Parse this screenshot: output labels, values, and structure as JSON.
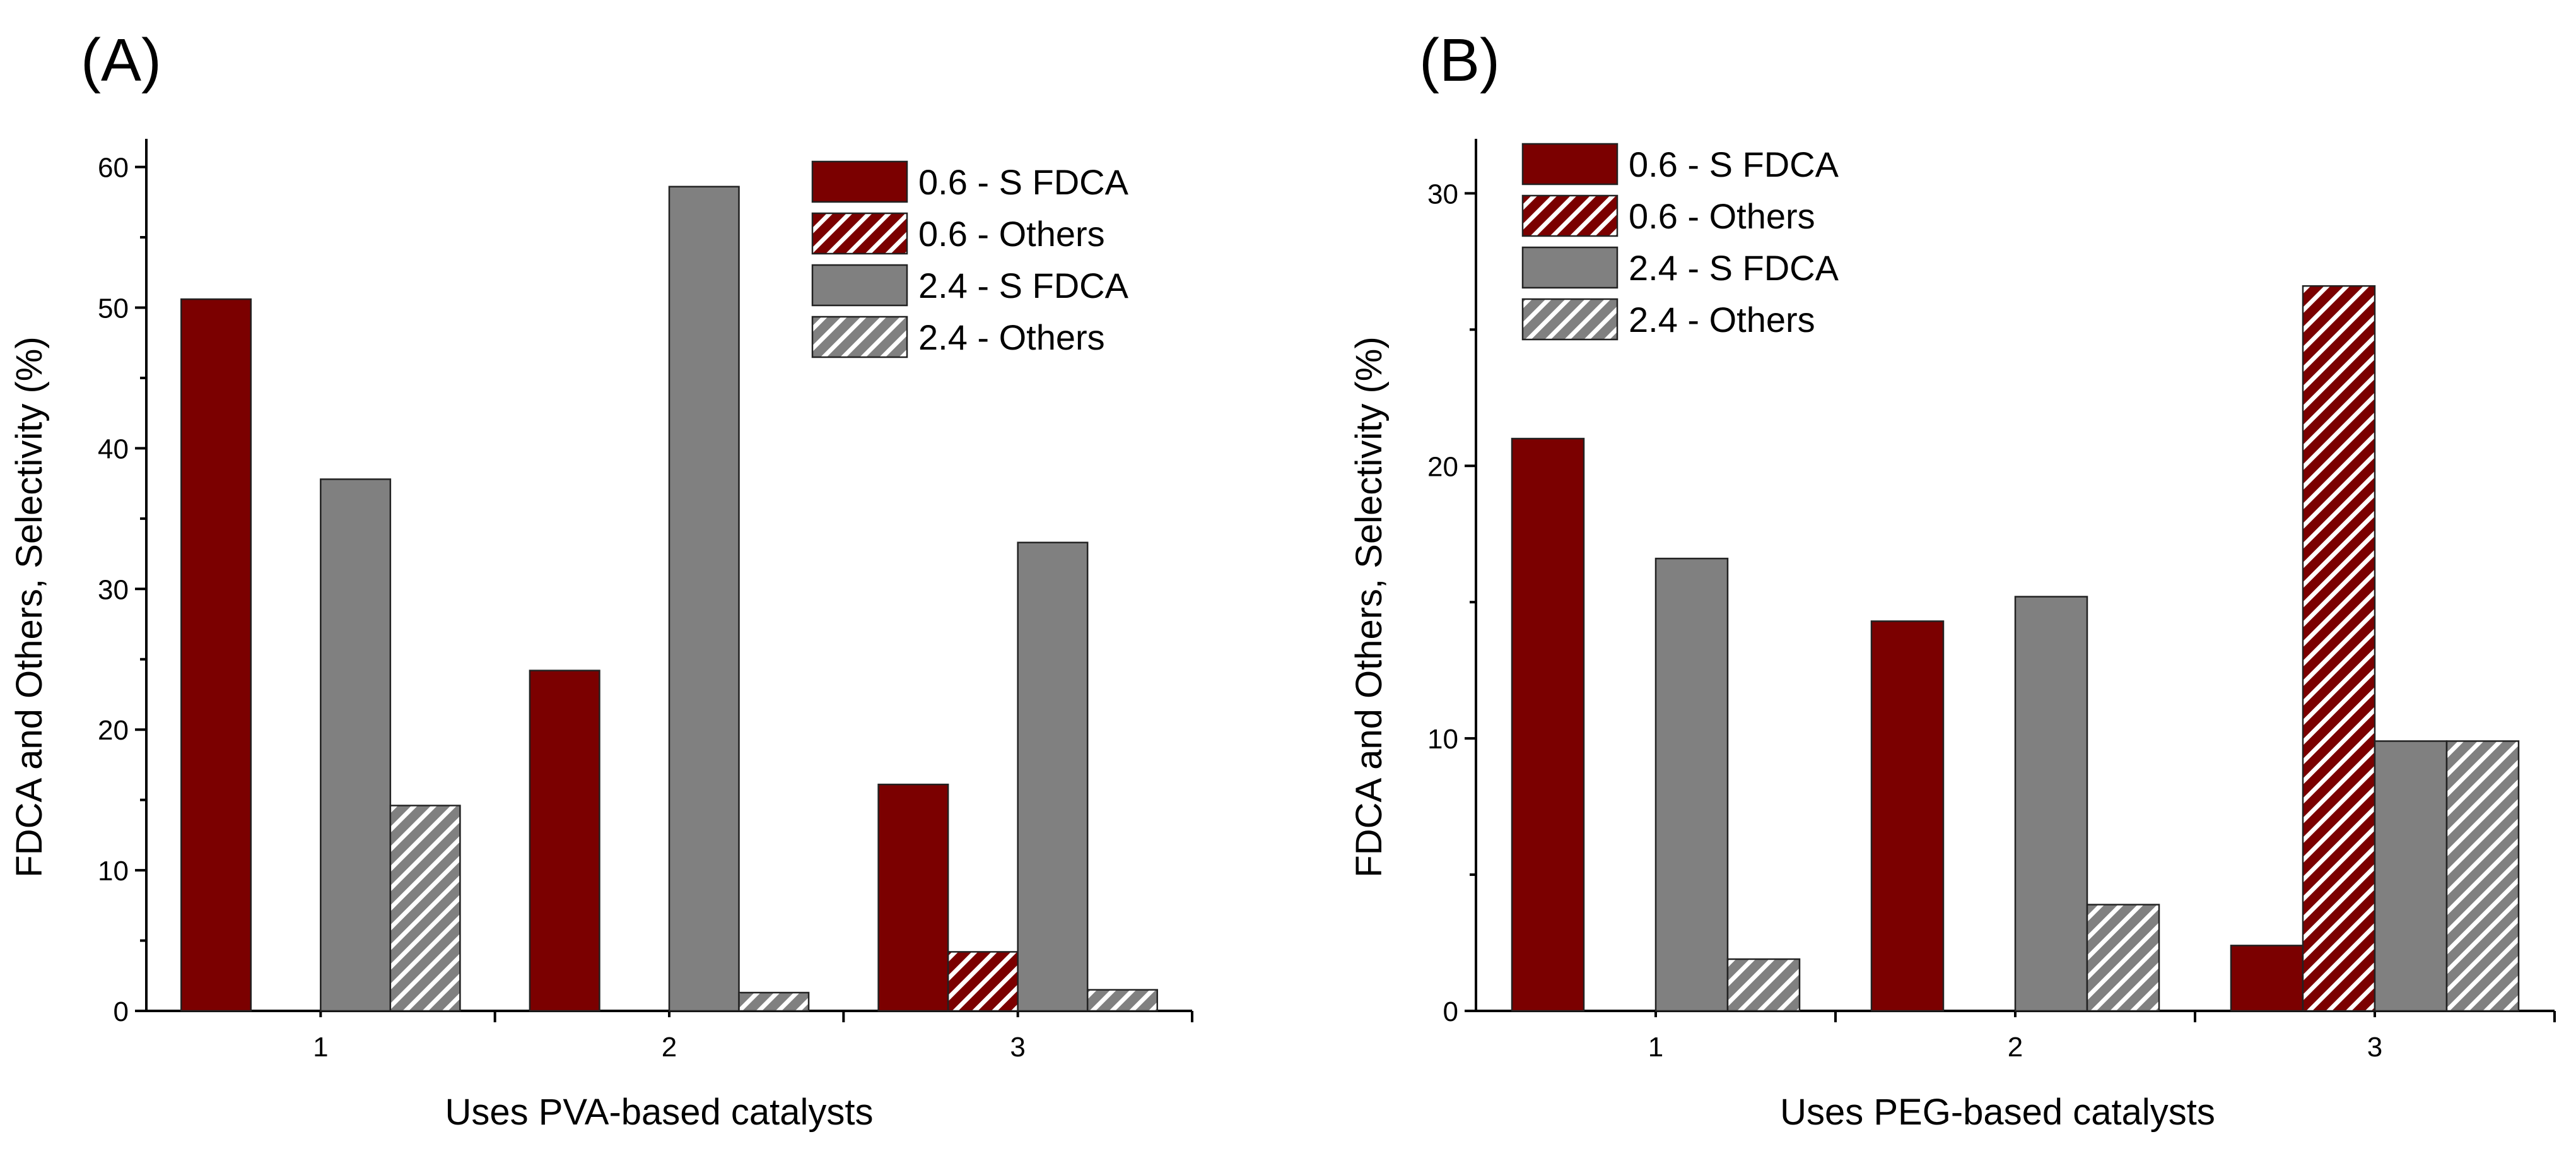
{
  "colors": {
    "series_06": "#7b0000",
    "series_24": "#808080",
    "hatch_stripe": "#ffffff"
  },
  "chart_data": [
    {
      "type": "bar",
      "panel_label": "(A)",
      "xlabel": "Uses PVA-based catalysts",
      "ylabel": "FDCA and Others, Selectivity (%)",
      "categories": [
        "1",
        "2",
        "3"
      ],
      "ylim": [
        0,
        62
      ],
      "yticks": [
        0,
        10,
        20,
        30,
        40,
        50,
        60
      ],
      "legend_position": "top-right",
      "series": [
        {
          "name": "0.6 - S FDCA",
          "color": "#7b0000",
          "hatched": false,
          "values": [
            50.6,
            24.2,
            16.1
          ]
        },
        {
          "name": "0.6 - Others",
          "color": "#7b0000",
          "hatched": true,
          "values": [
            0,
            0,
            4.2
          ]
        },
        {
          "name": "2.4 - S FDCA",
          "color": "#808080",
          "hatched": false,
          "values": [
            37.8,
            58.6,
            33.3
          ]
        },
        {
          "name": "2.4 - Others",
          "color": "#808080",
          "hatched": true,
          "values": [
            14.6,
            1.3,
            1.5
          ]
        }
      ]
    },
    {
      "type": "bar",
      "panel_label": "(B)",
      "xlabel": "Uses PEG-based catalysts",
      "ylabel": "FDCA and Others, Selectivity (%)",
      "categories": [
        "1",
        "2",
        "3"
      ],
      "ylim": [
        0,
        32
      ],
      "yticks": [
        0,
        10,
        20,
        30
      ],
      "legend_position": "top-left",
      "series": [
        {
          "name": "0.6 - S FDCA",
          "color": "#7b0000",
          "hatched": false,
          "values": [
            21.0,
            14.3,
            2.4
          ]
        },
        {
          "name": "0.6 - Others",
          "color": "#7b0000",
          "hatched": true,
          "values": [
            0,
            0,
            26.6
          ]
        },
        {
          "name": "2.4 - S FDCA",
          "color": "#808080",
          "hatched": false,
          "values": [
            16.6,
            15.2,
            9.9
          ]
        },
        {
          "name": "2.4 - Others",
          "color": "#808080",
          "hatched": true,
          "values": [
            1.9,
            3.9,
            9.9
          ]
        }
      ]
    }
  ]
}
